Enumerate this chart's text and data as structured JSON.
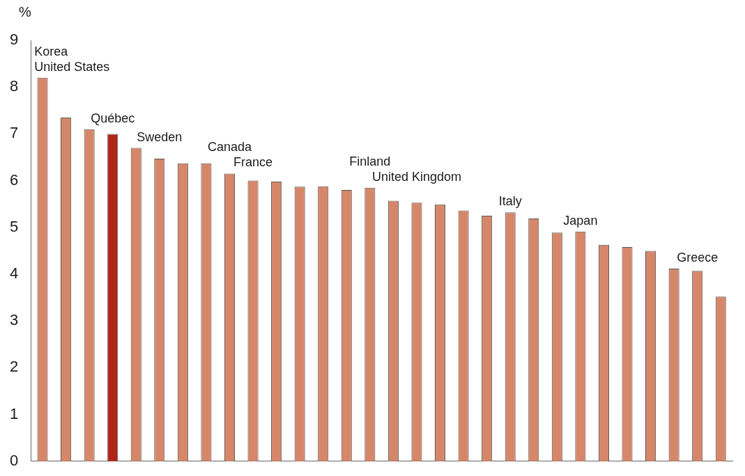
{
  "chart_data": {
    "type": "bar",
    "ylabel": "%",
    "categories": [
      "Korea",
      "United States",
      null,
      "Québec",
      null,
      "Sweden",
      null,
      null,
      "Canada",
      "France",
      null,
      null,
      null,
      null,
      "Finland",
      null,
      "United Kingdom",
      null,
      null,
      null,
      "Italy",
      null,
      null,
      "Japan",
      null,
      null,
      null,
      null,
      "Greece",
      null
    ],
    "values": [
      8.2,
      7.35,
      7.1,
      7.0,
      6.7,
      6.47,
      6.37,
      6.37,
      6.15,
      6.0,
      5.98,
      5.87,
      5.88,
      5.8,
      5.85,
      5.57,
      5.53,
      5.49,
      5.36,
      5.25,
      5.32,
      5.19,
      4.89,
      4.91,
      4.63,
      4.58,
      4.5,
      4.12,
      4.07,
      3.52
    ],
    "colors": [
      "#d6876a",
      "#d6876a",
      "#d6876a",
      "#b02418",
      "#d6876a",
      "#d6876a",
      "#d6876a",
      "#d6876a",
      "#d6876a",
      "#d6876a",
      "#d6876a",
      "#d6876a",
      "#d6876a",
      "#d6876a",
      "#d6876a",
      "#d6876a",
      "#d6876a",
      "#d6876a",
      "#d6876a",
      "#d6876a",
      "#d6876a",
      "#d6876a",
      "#d6876a",
      "#d6876a",
      "#d6876a",
      "#d6876a",
      "#d6876a",
      "#d6876a",
      "#d6876a",
      "#d6876a"
    ],
    "ylim": [
      0,
      9
    ],
    "yticks": [
      0,
      1,
      2,
      3,
      4,
      5,
      6,
      7,
      8,
      9
    ],
    "grid": false,
    "legend": false
  }
}
